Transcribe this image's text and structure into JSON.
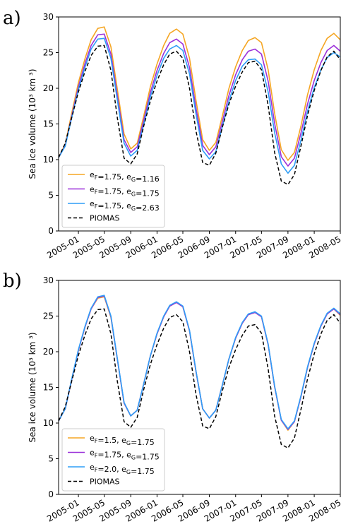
{
  "chart_data": [
    {
      "panel_label": "a)",
      "type": "line",
      "xlabel": "",
      "ylabel": "Sea ice volume (10³ km ³)",
      "ylim": [
        0,
        30
      ],
      "yticks": [
        0,
        5,
        10,
        15,
        20,
        25,
        30
      ],
      "xlim": [
        "2004-10-01",
        "2008-05-01"
      ],
      "xticks": [
        "2005-01",
        "2005-05",
        "2005-09",
        "2006-01",
        "2006-05",
        "2006-09",
        "2007-01",
        "2007-05",
        "2007-09",
        "2008-01",
        "2008-05"
      ],
      "grid": false,
      "legend": "lower-left",
      "series": [
        {
          "name": "eF=1.75, eG=1.16",
          "legend_main": [
            "e",
            "=1.75, e",
            "=1.16"
          ],
          "legend_sub": [
            "F",
            "G"
          ],
          "color": "#f5a623",
          "dash": "solid",
          "x": [
            "2004-10-01",
            "2004-11-01",
            "2004-12-01",
            "2005-01-01",
            "2005-02-01",
            "2005-03-01",
            "2005-04-01",
            "2005-05-01",
            "2005-06-01",
            "2005-07-01",
            "2005-08-01",
            "2005-09-01",
            "2005-10-01",
            "2005-11-01",
            "2005-12-01",
            "2006-01-01",
            "2006-02-01",
            "2006-03-01",
            "2006-04-01",
            "2006-05-01",
            "2006-06-01",
            "2006-07-01",
            "2006-08-01",
            "2006-09-01",
            "2006-10-01",
            "2006-11-01",
            "2006-12-01",
            "2007-01-01",
            "2007-02-01",
            "2007-03-01",
            "2007-04-01",
            "2007-05-01",
            "2007-06-01",
            "2007-07-01",
            "2007-08-01",
            "2007-09-01",
            "2007-10-01",
            "2007-11-01",
            "2007-12-01",
            "2008-01-01",
            "2008-02-01",
            "2008-03-01",
            "2008-04-01",
            "2008-05-01"
          ],
          "values": [
            10.3,
            12.2,
            16.5,
            20.8,
            24.2,
            26.8,
            28.4,
            28.6,
            25.8,
            19.8,
            13.6,
            11.5,
            12.3,
            16.2,
            20.2,
            23.4,
            26.0,
            27.7,
            28.3,
            27.6,
            24.2,
            18.3,
            12.8,
            11.3,
            12.4,
            16.2,
            20.0,
            23.0,
            25.3,
            26.7,
            27.1,
            26.4,
            22.6,
            16.5,
            11.4,
            9.9,
            11.0,
            14.8,
            19.1,
            22.6,
            25.3,
            27.0,
            27.7,
            26.8
          ]
        },
        {
          "name": "eF=1.75, eG=1.75",
          "legend_main": [
            "e",
            "=1.75, e",
            "=1.75"
          ],
          "legend_sub": [
            "F",
            "G"
          ],
          "color": "#9b30d9",
          "dash": "solid",
          "x": [
            "2004-10-01",
            "2004-11-01",
            "2004-12-01",
            "2005-01-01",
            "2005-02-01",
            "2005-03-01",
            "2005-04-01",
            "2005-05-01",
            "2005-06-01",
            "2005-07-01",
            "2005-08-01",
            "2005-09-01",
            "2005-10-01",
            "2005-11-01",
            "2005-12-01",
            "2006-01-01",
            "2006-02-01",
            "2006-03-01",
            "2006-04-01",
            "2006-05-01",
            "2006-06-01",
            "2006-07-01",
            "2006-08-01",
            "2006-09-01",
            "2006-10-01",
            "2006-11-01",
            "2006-12-01",
            "2007-01-01",
            "2007-02-01",
            "2007-03-01",
            "2007-04-01",
            "2007-05-01",
            "2007-06-01",
            "2007-07-01",
            "2007-08-01",
            "2007-09-01",
            "2007-10-01",
            "2007-11-01",
            "2007-12-01",
            "2008-01-01",
            "2008-02-01",
            "2008-03-01",
            "2008-04-01",
            "2008-05-01"
          ],
          "values": [
            10.3,
            12.0,
            16.1,
            20.2,
            23.5,
            26.0,
            27.5,
            27.6,
            24.8,
            18.9,
            12.8,
            11.0,
            11.8,
            15.6,
            19.4,
            22.5,
            24.9,
            26.4,
            26.9,
            26.2,
            22.9,
            17.2,
            12.0,
            10.7,
            11.8,
            15.4,
            19.0,
            21.9,
            24.0,
            25.2,
            25.5,
            24.8,
            21.0,
            15.1,
            10.4,
            9.1,
            10.2,
            13.8,
            17.8,
            21.1,
            23.6,
            25.3,
            26.0,
            25.2
          ]
        },
        {
          "name": "eF=1.75, eG=2.63",
          "legend_main": [
            "e",
            "=1.75, e",
            "=2.63"
          ],
          "legend_sub": [
            "F",
            "G"
          ],
          "color": "#2e9df7",
          "dash": "solid",
          "x": [
            "2004-10-01",
            "2004-11-01",
            "2004-12-01",
            "2005-01-01",
            "2005-02-01",
            "2005-03-01",
            "2005-04-01",
            "2005-05-01",
            "2005-06-01",
            "2005-07-01",
            "2005-08-01",
            "2005-09-01",
            "2005-10-01",
            "2005-11-01",
            "2005-12-01",
            "2006-01-01",
            "2006-02-01",
            "2006-03-01",
            "2006-04-01",
            "2006-05-01",
            "2006-06-01",
            "2006-07-01",
            "2006-08-01",
            "2006-09-01",
            "2006-10-01",
            "2006-11-01",
            "2006-12-01",
            "2007-01-01",
            "2007-02-01",
            "2007-03-01",
            "2007-04-01",
            "2007-05-01",
            "2007-06-01",
            "2007-07-01",
            "2007-08-01",
            "2007-09-01",
            "2007-10-01",
            "2007-11-01",
            "2007-12-01",
            "2008-01-01",
            "2008-02-01",
            "2008-03-01",
            "2008-04-01",
            "2008-05-01"
          ],
          "values": [
            10.3,
            11.9,
            15.9,
            19.8,
            23.0,
            25.5,
            26.9,
            27.0,
            24.2,
            18.3,
            12.3,
            10.5,
            11.3,
            15.0,
            18.8,
            21.8,
            24.2,
            25.5,
            26.0,
            25.3,
            22.0,
            16.4,
            11.3,
            10.1,
            11.1,
            14.7,
            18.2,
            21.1,
            23.1,
            24.0,
            24.1,
            23.3,
            19.5,
            13.8,
            9.4,
            8.1,
            9.2,
            12.8,
            16.8,
            20.1,
            22.6,
            24.3,
            25.0,
            24.4
          ]
        },
        {
          "name": "PIOMAS",
          "legend_main": [
            "PIOMAS"
          ],
          "legend_sub": [],
          "color": "#000000",
          "dash": "dashed",
          "x": [
            "2004-10-01",
            "2004-11-01",
            "2004-12-01",
            "2005-01-01",
            "2005-02-01",
            "2005-03-01",
            "2005-04-01",
            "2005-05-01",
            "2005-06-01",
            "2005-07-01",
            "2005-08-01",
            "2005-09-01",
            "2005-10-01",
            "2005-11-01",
            "2005-12-01",
            "2006-01-01",
            "2006-02-01",
            "2006-03-01",
            "2006-04-01",
            "2006-05-01",
            "2006-06-01",
            "2006-07-01",
            "2006-08-01",
            "2006-09-01",
            "2006-10-01",
            "2006-11-01",
            "2006-12-01",
            "2007-01-01",
            "2007-02-01",
            "2007-03-01",
            "2007-04-01",
            "2007-05-01",
            "2007-06-01",
            "2007-07-01",
            "2007-08-01",
            "2007-09-01",
            "2007-10-01",
            "2007-11-01",
            "2007-12-01",
            "2008-01-01",
            "2008-02-01",
            "2008-03-01",
            "2008-04-01",
            "2008-05-01"
          ],
          "values": [
            10.3,
            12.3,
            15.9,
            19.5,
            22.4,
            24.6,
            25.9,
            26.0,
            22.5,
            15.8,
            10.2,
            9.4,
            10.8,
            14.8,
            18.2,
            21.0,
            23.3,
            24.8,
            25.2,
            24.2,
            20.0,
            14.0,
            9.6,
            9.2,
            10.9,
            14.6,
            17.8,
            20.3,
            22.3,
            23.6,
            23.8,
            22.6,
            17.6,
            11.0,
            7.0,
            6.5,
            7.9,
            12.0,
            16.2,
            19.7,
            22.5,
            24.4,
            25.2,
            24.0
          ]
        }
      ]
    },
    {
      "panel_label": "b)",
      "type": "line",
      "xlabel": "",
      "ylabel": "Sea ice volume (10³ km ³)",
      "ylim": [
        0,
        30
      ],
      "yticks": [
        0,
        5,
        10,
        15,
        20,
        25,
        30
      ],
      "xlim": [
        "2004-10-01",
        "2008-05-01"
      ],
      "xticks": [
        "2005-01",
        "2005-05",
        "2005-09",
        "2006-01",
        "2006-05",
        "2006-09",
        "2007-01",
        "2007-05",
        "2007-09",
        "2008-01",
        "2008-05"
      ],
      "grid": false,
      "legend": "lower-left",
      "series": [
        {
          "name": "eF=1.5, eG=1.75",
          "legend_main": [
            "e",
            "=1.5, e",
            "=1.75"
          ],
          "legend_sub": [
            "F",
            "G"
          ],
          "color": "#f5a623",
          "dash": "solid",
          "x": [
            "2004-10-01",
            "2004-11-01",
            "2004-12-01",
            "2005-01-01",
            "2005-02-01",
            "2005-03-01",
            "2005-04-01",
            "2005-05-01",
            "2005-06-01",
            "2005-07-01",
            "2005-08-01",
            "2005-09-01",
            "2005-10-01",
            "2005-11-01",
            "2005-12-01",
            "2006-01-01",
            "2006-02-01",
            "2006-03-01",
            "2006-04-01",
            "2006-05-01",
            "2006-06-01",
            "2006-07-01",
            "2006-08-01",
            "2006-09-01",
            "2006-10-01",
            "2006-11-01",
            "2006-12-01",
            "2007-01-01",
            "2007-02-01",
            "2007-03-01",
            "2007-04-01",
            "2007-05-01",
            "2007-06-01",
            "2007-07-01",
            "2007-08-01",
            "2007-09-01",
            "2007-10-01",
            "2007-11-01",
            "2007-12-01",
            "2008-01-01",
            "2008-02-01",
            "2008-03-01",
            "2008-04-01",
            "2008-05-01"
          ],
          "values": [
            10.3,
            12.0,
            16.1,
            20.2,
            23.5,
            26.0,
            27.5,
            27.7,
            24.8,
            18.9,
            12.8,
            11.0,
            11.8,
            15.6,
            19.4,
            22.5,
            24.9,
            26.4,
            26.9,
            26.3,
            22.9,
            17.2,
            12.0,
            10.7,
            11.8,
            15.4,
            19.0,
            21.9,
            24.0,
            25.2,
            25.5,
            24.9,
            21.0,
            15.1,
            10.4,
            9.0,
            10.2,
            13.8,
            17.8,
            21.1,
            23.6,
            25.3,
            26.0,
            25.1
          ]
        },
        {
          "name": "eF=1.75, eG=1.75",
          "legend_main": [
            "e",
            "=1.75, e",
            "=1.75"
          ],
          "legend_sub": [
            "F",
            "G"
          ],
          "color": "#9b30d9",
          "dash": "solid",
          "x": [
            "2004-10-01",
            "2004-11-01",
            "2004-12-01",
            "2005-01-01",
            "2005-02-01",
            "2005-03-01",
            "2005-04-01",
            "2005-05-01",
            "2005-06-01",
            "2005-07-01",
            "2005-08-01",
            "2005-09-01",
            "2005-10-01",
            "2005-11-01",
            "2005-12-01",
            "2006-01-01",
            "2006-02-01",
            "2006-03-01",
            "2006-04-01",
            "2006-05-01",
            "2006-06-01",
            "2006-07-01",
            "2006-08-01",
            "2006-09-01",
            "2006-10-01",
            "2006-11-01",
            "2006-12-01",
            "2007-01-01",
            "2007-02-01",
            "2007-03-01",
            "2007-04-01",
            "2007-05-01",
            "2007-06-01",
            "2007-07-01",
            "2007-08-01",
            "2007-09-01",
            "2007-10-01",
            "2007-11-01",
            "2007-12-01",
            "2008-01-01",
            "2008-02-01",
            "2008-03-01",
            "2008-04-01",
            "2008-05-01"
          ],
          "values": [
            10.3,
            12.0,
            16.1,
            20.2,
            23.5,
            26.0,
            27.6,
            27.8,
            24.9,
            18.9,
            12.8,
            11.0,
            11.8,
            15.6,
            19.4,
            22.5,
            24.9,
            26.4,
            26.9,
            26.3,
            22.9,
            17.2,
            12.0,
            10.7,
            11.8,
            15.4,
            19.0,
            21.9,
            24.0,
            25.2,
            25.5,
            24.9,
            21.0,
            15.1,
            10.4,
            9.1,
            10.2,
            13.8,
            17.8,
            21.1,
            23.6,
            25.3,
            26.0,
            25.2
          ]
        },
        {
          "name": "eF=2.0, eG=1.75",
          "legend_main": [
            "e",
            "=2.0, e",
            "=1.75"
          ],
          "legend_sub": [
            "F",
            "G"
          ],
          "color": "#2e9df7",
          "dash": "solid",
          "x": [
            "2004-10-01",
            "2004-11-01",
            "2004-12-01",
            "2005-01-01",
            "2005-02-01",
            "2005-03-01",
            "2005-04-01",
            "2005-05-01",
            "2005-06-01",
            "2005-07-01",
            "2005-08-01",
            "2005-09-01",
            "2005-10-01",
            "2005-11-01",
            "2005-12-01",
            "2006-01-01",
            "2006-02-01",
            "2006-03-01",
            "2006-04-01",
            "2006-05-01",
            "2006-06-01",
            "2006-07-01",
            "2006-08-01",
            "2006-09-01",
            "2006-10-01",
            "2006-11-01",
            "2006-12-01",
            "2007-01-01",
            "2007-02-01",
            "2007-03-01",
            "2007-04-01",
            "2007-05-01",
            "2007-06-01",
            "2007-07-01",
            "2007-08-01",
            "2007-09-01",
            "2007-10-01",
            "2007-11-01",
            "2007-12-01",
            "2008-01-01",
            "2008-02-01",
            "2008-03-01",
            "2008-04-01",
            "2008-05-01"
          ],
          "values": [
            10.3,
            12.0,
            16.2,
            20.3,
            23.6,
            26.1,
            27.7,
            27.9,
            25.0,
            19.0,
            12.9,
            11.0,
            11.8,
            15.6,
            19.4,
            22.6,
            25.0,
            26.5,
            27.0,
            26.4,
            23.0,
            17.3,
            12.0,
            10.7,
            11.8,
            15.4,
            19.0,
            22.0,
            24.1,
            25.3,
            25.6,
            25.0,
            21.1,
            15.2,
            10.5,
            9.2,
            10.3,
            13.9,
            17.9,
            21.2,
            23.7,
            25.4,
            26.1,
            25.3
          ]
        },
        {
          "name": "PIOMAS",
          "legend_main": [
            "PIOMAS"
          ],
          "legend_sub": [],
          "color": "#000000",
          "dash": "dashed",
          "x": [
            "2004-10-01",
            "2004-11-01",
            "2004-12-01",
            "2005-01-01",
            "2005-02-01",
            "2005-03-01",
            "2005-04-01",
            "2005-05-01",
            "2005-06-01",
            "2005-07-01",
            "2005-08-01",
            "2005-09-01",
            "2005-10-01",
            "2005-11-01",
            "2005-12-01",
            "2006-01-01",
            "2006-02-01",
            "2006-03-01",
            "2006-04-01",
            "2006-05-01",
            "2006-06-01",
            "2006-07-01",
            "2006-08-01",
            "2006-09-01",
            "2006-10-01",
            "2006-11-01",
            "2006-12-01",
            "2007-01-01",
            "2007-02-01",
            "2007-03-01",
            "2007-04-01",
            "2007-05-01",
            "2007-06-01",
            "2007-07-01",
            "2007-08-01",
            "2007-09-01",
            "2007-10-01",
            "2007-11-01",
            "2007-12-01",
            "2008-01-01",
            "2008-02-01",
            "2008-03-01",
            "2008-04-01",
            "2008-05-01"
          ],
          "values": [
            10.3,
            12.3,
            15.9,
            19.5,
            22.4,
            24.6,
            25.9,
            26.0,
            22.5,
            15.8,
            10.2,
            9.4,
            10.8,
            14.8,
            18.2,
            21.0,
            23.3,
            24.8,
            25.2,
            24.2,
            20.0,
            14.0,
            9.6,
            9.2,
            10.9,
            14.6,
            17.8,
            20.3,
            22.3,
            23.6,
            23.8,
            22.6,
            17.6,
            11.0,
            7.0,
            6.5,
            7.9,
            12.0,
            16.2,
            19.7,
            22.5,
            24.4,
            25.2,
            24.0
          ]
        }
      ]
    }
  ]
}
